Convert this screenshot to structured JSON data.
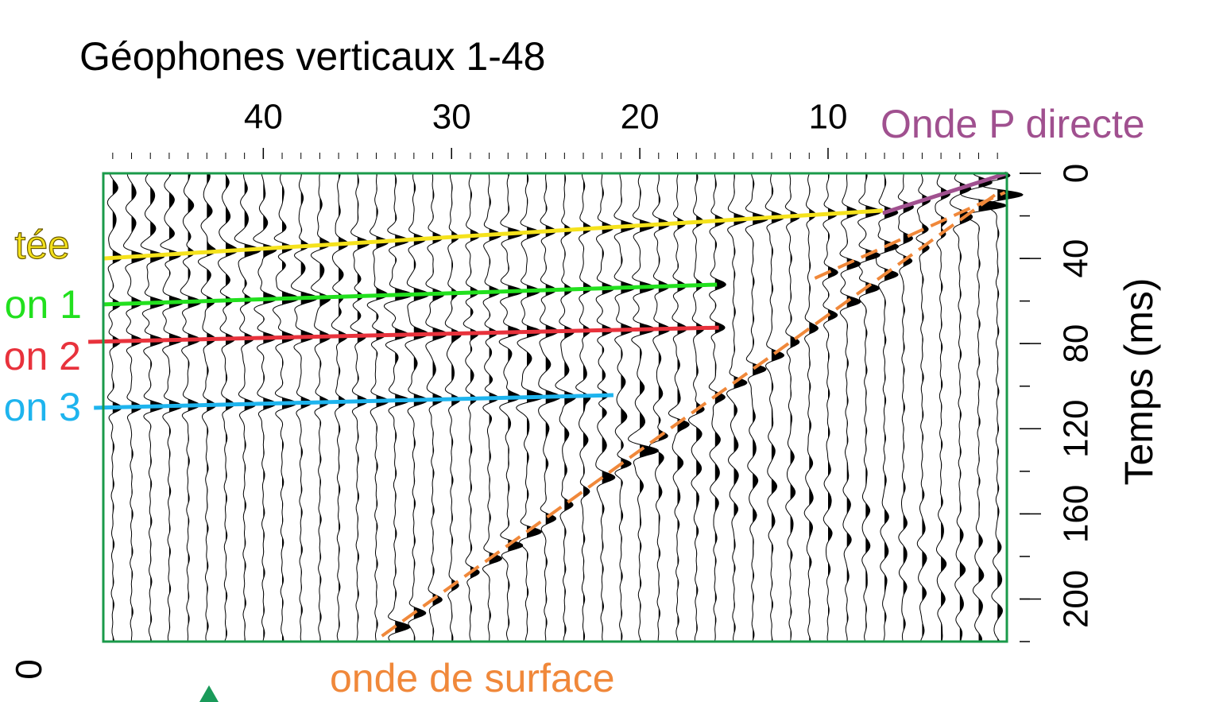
{
  "chart_data": {
    "type": "seismic",
    "title": "Géophones verticaux 1-48",
    "y_label": "Temps (ms)",
    "xlim": [
      48.5,
      0.5
    ],
    "xticks": [
      40,
      30,
      20,
      10
    ],
    "ylim": [
      0,
      220
    ],
    "yticks": [
      0,
      40,
      80,
      120,
      160,
      200
    ],
    "frame_color": "#1a9a4a",
    "series": [
      {
        "name": "Onde P directe",
        "color": "#a0508f",
        "x": [
          0.5,
          7.1
        ],
        "values": [
          0,
          18.7
        ]
      },
      {
        "name": "tée",
        "color": "#f5e21c",
        "x": [
          48.5,
          7.1
        ],
        "values": [
          40,
          17.5
        ]
      },
      {
        "name": "on 1",
        "color": "#22e01e",
        "x": [
          48.5,
          15.9
        ],
        "values": [
          61.6,
          52.3
        ]
      },
      {
        "name": "on 2",
        "color": "#e8323c",
        "x": [
          49.3,
          15.8
        ],
        "values": [
          79.2,
          72.5
        ]
      },
      {
        "name": "on 3",
        "color": "#1eb4ee",
        "x": [
          49.0,
          21.4
        ],
        "values": [
          110.2,
          104.2
        ]
      },
      {
        "name": "onde de surface",
        "color": "#f0883a",
        "dashed": true,
        "x": [
          33.7,
          1.0,
          null,
          10.7,
          0.6
        ],
        "values": [
          217.4,
          9.3,
          null,
          49.3,
          9.0
        ]
      }
    ],
    "annotations": [
      "0"
    ]
  }
}
